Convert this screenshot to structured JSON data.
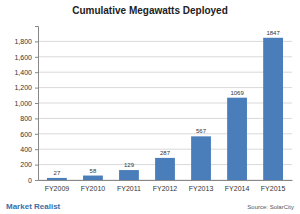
{
  "chart_data": {
    "type": "bar",
    "title": "Cumulative Megawatts Deployed",
    "categories": [
      "FY2009",
      "FY2010",
      "FY2011",
      "FY2012",
      "FY2013",
      "FY2014",
      "FY2015"
    ],
    "values": [
      27,
      58,
      129,
      287,
      567,
      1069,
      1847
    ],
    "color": "#4a7ebb",
    "ylim": [
      0,
      2000
    ],
    "yticks": [
      0,
      200,
      400,
      600,
      800,
      1000,
      1200,
      1400,
      1600,
      1800
    ],
    "grid": true,
    "data_labels": true,
    "annotations": [
      "Source: SolarCity",
      "Market Realist"
    ]
  }
}
